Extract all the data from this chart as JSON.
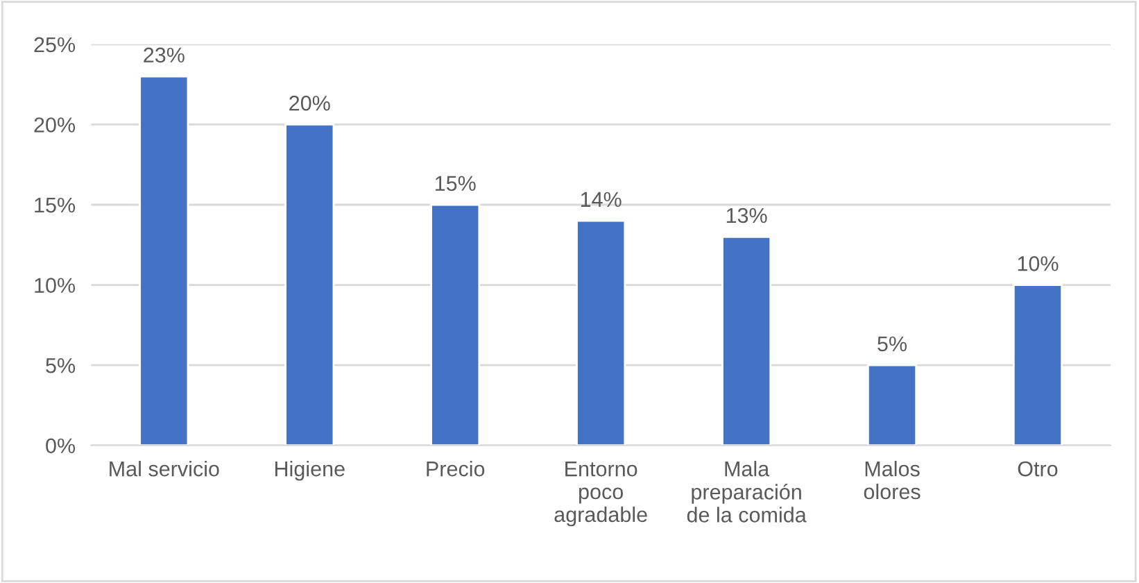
{
  "chart_data": {
    "type": "bar",
    "categories": [
      "Mal servicio",
      "Higiene",
      "Precio",
      "Entorno\npoco\nagradable",
      "Mala\npreparación\nde la comida",
      "Malos\nolores",
      "Otro"
    ],
    "values": [
      23,
      20,
      15,
      14,
      13,
      5,
      10
    ],
    "value_labels": [
      "23%",
      "20%",
      "15%",
      "14%",
      "13%",
      "5%",
      "10%"
    ],
    "color": "#4472c4",
    "ylim": [
      0,
      25
    ],
    "yticks": [
      {
        "value": 0,
        "label": "0%"
      },
      {
        "value": 5,
        "label": "5%"
      },
      {
        "value": 10,
        "label": "10%"
      },
      {
        "value": 15,
        "label": "15%"
      },
      {
        "value": 20,
        "label": "20%"
      },
      {
        "value": 25,
        "label": "25%"
      }
    ],
    "grid": "y"
  }
}
